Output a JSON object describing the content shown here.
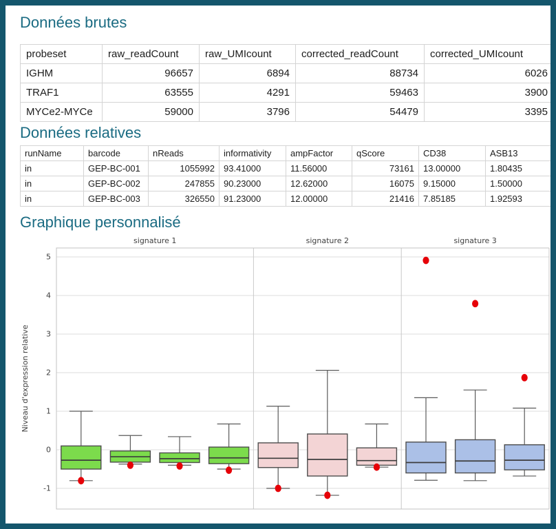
{
  "window": {
    "border_color": "#14566c",
    "background": "#ffffff",
    "accent_color": "#1a6b82"
  },
  "sections": {
    "raw": {
      "title": "Données brutes"
    },
    "relative": {
      "title": "Données relatives"
    },
    "chart": {
      "title": "Graphique personnalisé"
    }
  },
  "raw_table": {
    "columns": [
      {
        "label": "probeset",
        "align": "left"
      },
      {
        "label": "raw_readCount",
        "align": "right"
      },
      {
        "label": "raw_UMIcount",
        "align": "right"
      },
      {
        "label": "corrected_readCount",
        "align": "right"
      },
      {
        "label": "corrected_UMIcount",
        "align": "right"
      }
    ],
    "rows": [
      [
        "IGHM",
        "96657",
        "6894",
        "88734",
        "6026"
      ],
      [
        "TRAF1",
        "63555",
        "4291",
        "59463",
        "3900"
      ],
      [
        "MYCe2-MYCe",
        "59000",
        "3796",
        "54479",
        "3395"
      ]
    ]
  },
  "relative_table": {
    "columns": [
      {
        "label": "runName",
        "align": "left"
      },
      {
        "label": "barcode",
        "align": "left"
      },
      {
        "label": "nReads",
        "align": "right"
      },
      {
        "label": "informativity",
        "align": "left"
      },
      {
        "label": "ampFactor",
        "align": "left"
      },
      {
        "label": "qScore",
        "align": "right"
      },
      {
        "label": "CD38",
        "align": "left"
      },
      {
        "label": "ASB13",
        "align": "left"
      }
    ],
    "rows": [
      [
        "in",
        "GEP-BC-001",
        "1055992",
        "93.41000",
        "11.56000",
        "73161",
        "13.00000",
        "1.80435"
      ],
      [
        "in",
        "GEP-BC-002",
        "247855",
        "90.23000",
        "12.62000",
        "16075",
        "9.15000",
        "1.50000"
      ],
      [
        "in",
        "GEP-BC-003",
        "326550",
        "91.23000",
        "12.00000",
        "21416",
        "7.85185",
        "1.92593"
      ]
    ]
  },
  "chart_data": {
    "type": "boxplot",
    "title": "",
    "ylabel": "Niveau d'expression relative",
    "yticks": [
      5,
      4,
      3,
      2,
      1,
      0,
      -1
    ],
    "ylim": [
      -1.45,
      5.25
    ],
    "grid": true,
    "legend": "none",
    "outlier_color": "#e60008",
    "panels": [
      {
        "label": "signature 1",
        "fill": "#7cdb4c",
        "boxes": [
          {
            "whisker_high": 1.0,
            "q3": 0.1,
            "median": -0.27,
            "q1": -0.5,
            "whisker_low": -0.8,
            "outliers": [
              -0.8
            ]
          },
          {
            "whisker_high": 0.37,
            "q3": -0.03,
            "median": -0.18,
            "q1": -0.32,
            "whisker_low": -0.37,
            "outliers": [
              -0.4
            ]
          },
          {
            "whisker_high": 0.34,
            "q3": -0.08,
            "median": -0.23,
            "q1": -0.33,
            "whisker_low": -0.4,
            "outliers": [
              -0.42
            ]
          },
          {
            "whisker_high": 0.67,
            "q3": 0.07,
            "median": -0.21,
            "q1": -0.36,
            "whisker_low": -0.5,
            "outliers": [
              -0.53
            ]
          }
        ]
      },
      {
        "label": "signature 2",
        "fill": "#f3d4d5",
        "boxes": [
          {
            "whisker_high": 1.13,
            "q3": 0.18,
            "median": -0.22,
            "q1": -0.46,
            "whisker_low": -1.0,
            "outliers": [
              -1.0
            ]
          },
          {
            "whisker_high": 2.06,
            "q3": 0.41,
            "median": -0.25,
            "q1": -0.68,
            "whisker_low": -1.18,
            "outliers": [
              -1.18
            ]
          },
          {
            "whisker_high": 0.67,
            "q3": 0.05,
            "median": -0.28,
            "q1": -0.4,
            "whisker_low": -0.45,
            "outliers": [
              -0.45
            ]
          }
        ]
      },
      {
        "label": "signature 3",
        "fill": "#abc0e7",
        "boxes": [
          {
            "whisker_high": 1.35,
            "q3": 0.2,
            "median": -0.33,
            "q1": -0.6,
            "whisker_low": -0.79,
            "outliers": [
              4.91
            ]
          },
          {
            "whisker_high": 1.55,
            "q3": 0.26,
            "median": -0.29,
            "q1": -0.6,
            "whisker_low": -0.8,
            "outliers": [
              3.79
            ]
          },
          {
            "whisker_high": 1.08,
            "q3": 0.13,
            "median": -0.27,
            "q1": -0.52,
            "whisker_low": -0.68,
            "outliers": [
              1.87
            ]
          }
        ]
      }
    ]
  }
}
